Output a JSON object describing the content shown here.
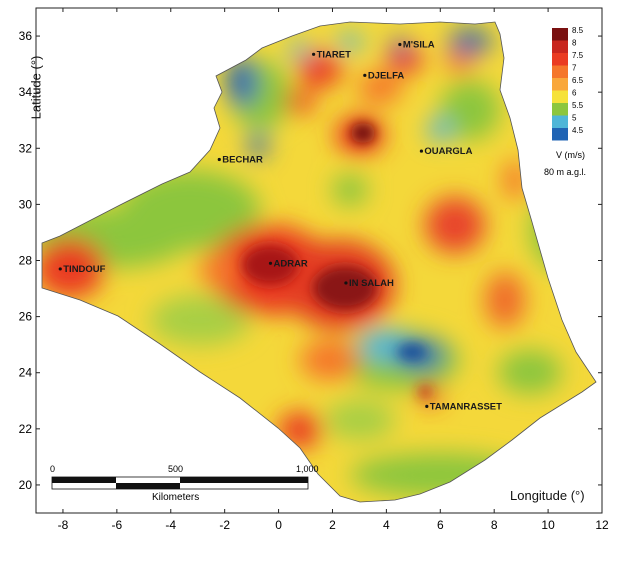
{
  "map": {
    "y_axis_label": "Latitude (°)",
    "x_axis_label": "Longitude (°)",
    "x_ticks": [
      "-8",
      "-6",
      "-4",
      "-2",
      "0",
      "2",
      "4",
      "6",
      "8",
      "10",
      "12"
    ],
    "y_ticks": [
      "20",
      "22",
      "24",
      "26",
      "28",
      "30",
      "32",
      "34",
      "36"
    ],
    "x_range": [
      -9,
      12
    ],
    "y_range": [
      19,
      37
    ],
    "legend": {
      "title": "V (m/s)",
      "subtitle": "80 m a.g.l.",
      "classes": [
        {
          "label": "8.5",
          "color": "#7a1010"
        },
        {
          "label": "8",
          "color": "#c8261e"
        },
        {
          "label": "7.5",
          "color": "#ea3b22"
        },
        {
          "label": "7",
          "color": "#f5762b"
        },
        {
          "label": "6.5",
          "color": "#f9a73b"
        },
        {
          "label": "6",
          "color": "#f6e23a"
        },
        {
          "label": "5.5",
          "color": "#8cc63e"
        },
        {
          "label": "5",
          "color": "#4fb6d8"
        },
        {
          "label": "4.5",
          "color": "#2064b4"
        }
      ]
    },
    "cities": [
      {
        "name": "TIARET",
        "lon": 1.3,
        "lat": 35.35
      },
      {
        "name": "M'SILA",
        "lon": 4.5,
        "lat": 35.7
      },
      {
        "name": "DJELFA",
        "lon": 3.2,
        "lat": 34.6
      },
      {
        "name": "BECHAR",
        "lon": -2.2,
        "lat": 31.6
      },
      {
        "name": "OUARGLA",
        "lon": 5.3,
        "lat": 31.9
      },
      {
        "name": "TINDOUF",
        "lon": -8.1,
        "lat": 27.7
      },
      {
        "name": "ADRAR",
        "lon": -0.3,
        "lat": 27.9
      },
      {
        "name": "IN SALAH",
        "lon": 2.5,
        "lat": 27.2
      },
      {
        "name": "TAMANRASSET",
        "lon": 5.5,
        "lat": 22.8
      }
    ],
    "scale_bar": {
      "labels": [
        "0",
        "500",
        "1,000"
      ],
      "unit": "Kilometers"
    }
  }
}
